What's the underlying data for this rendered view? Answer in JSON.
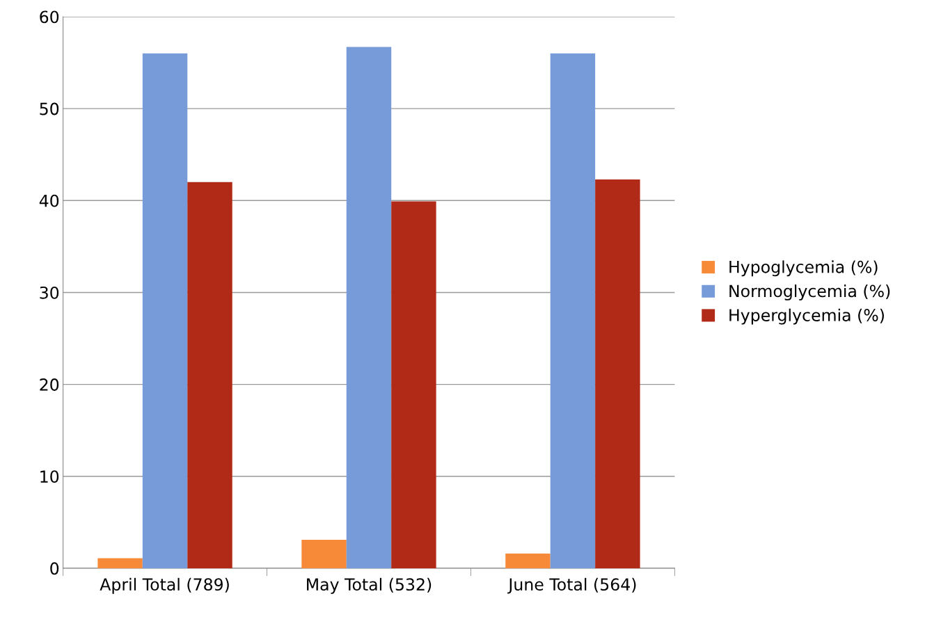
{
  "chart_data": {
    "type": "bar",
    "categories": [
      "April Total (789)",
      "May Total (532)",
      "June Total (564)"
    ],
    "series": [
      {
        "name": "Hypoglycemia (%)",
        "color": "#f78a38",
        "values": [
          1.1,
          3.1,
          1.6
        ]
      },
      {
        "name": "Normoglycemia (%)",
        "color": "#779bd9",
        "values": [
          56,
          56.7,
          56
        ]
      },
      {
        "name": "Hyperglycemia (%)",
        "color": "#b02a17",
        "values": [
          42,
          39.9,
          42.3
        ]
      }
    ],
    "ylim": [
      0,
      60
    ],
    "yticks": [
      0,
      10,
      20,
      30,
      40,
      50,
      60
    ],
    "grid": "y",
    "legend": "right"
  }
}
